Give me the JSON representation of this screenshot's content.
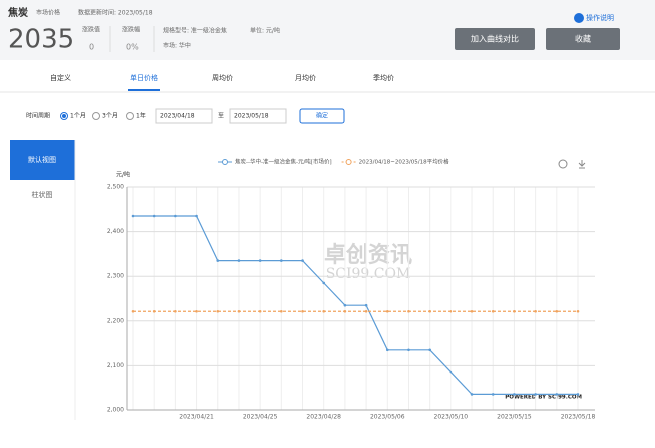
{
  "header": {
    "title": "焦炭",
    "market_label": "市场价格",
    "update_time": "数据更新时间: 2023/05/18",
    "price": "2035",
    "change_label": "涨跌值",
    "change": "0",
    "change_pct_label": "涨跌幅",
    "change_pct": "0%",
    "spec": "规格型号: 准一级冶金焦",
    "unit": "单位: 元/吨",
    "market": "市场: 华中",
    "help": "操作说明",
    "buttons": [
      "加入曲线对比",
      "收藏"
    ]
  },
  "tabs": [
    "自定义",
    "单日价格",
    "周均价",
    "月均价",
    "季均价"
  ],
  "filter": {
    "label": "时间周期",
    "options": [
      "1个月",
      "3个月",
      "1年"
    ],
    "start": "2023/04/18",
    "to": "至",
    "end": "2023/05/18",
    "confirm": "确定"
  },
  "sidebar": [
    "默认视图",
    "柱状图"
  ],
  "watermark": [
    "卓创资讯",
    "SCI99.COM"
  ],
  "powered": "POWERED BY SCI99.COM",
  "chart_data": {
    "type": "line",
    "y_label": "元/吨",
    "categories": [
      null,
      null,
      null,
      "2023/04/21",
      null,
      null,
      "2023/04/25",
      null,
      null,
      "2023/04/28",
      null,
      null,
      "2023/05/06",
      null,
      null,
      "2023/05/10",
      null,
      null,
      "2023/05/15",
      null,
      null,
      "2023/05/18"
    ],
    "series": [
      {
        "name": "焦炭--华中-准一级冶金焦-元/吨[市场价]",
        "color": "#5b9bd5",
        "values": [
          2435,
          2435,
          2435,
          2435,
          2335,
          2335,
          2335,
          2335,
          2335,
          2285,
          2235,
          2235,
          2135,
          2135,
          2135,
          2085,
          2035,
          2035,
          2035,
          2035,
          2035,
          2035
        ]
      },
      {
        "name": "2023/04/18~2023/05/18平均价格",
        "color": "#f0a35e",
        "dashed": true,
        "values": [
          2221.4,
          2221.4,
          2221.4,
          2221.4,
          2221.4,
          2221.4,
          2221.4,
          2221.4,
          2221.4,
          2221.4,
          2221.4,
          2221.4,
          2221.4,
          2221.4,
          2221.4,
          2221.4,
          2221.4,
          2221.4,
          2221.4,
          2221.4,
          2221.4,
          2221.4
        ]
      }
    ],
    "ylim": [
      2000,
      2500
    ],
    "yticks": [
      {
        "value": 2000,
        "label": "2,000"
      },
      {
        "value": 2100,
        "label": "2,100"
      },
      {
        "value": 2200,
        "label": "2,200"
      },
      {
        "value": 2300,
        "label": "2,300"
      },
      {
        "value": 2400,
        "label": "2,400"
      },
      {
        "value": 2500,
        "label": "2,500"
      }
    ],
    "grid": true
  }
}
